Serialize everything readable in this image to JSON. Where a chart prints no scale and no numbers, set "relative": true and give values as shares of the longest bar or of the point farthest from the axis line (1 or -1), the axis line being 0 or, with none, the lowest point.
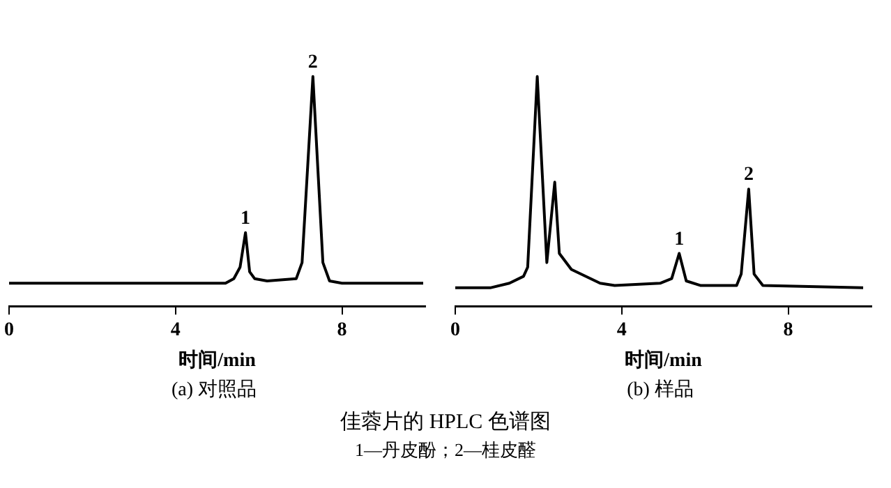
{
  "chart_data": [
    {
      "type": "line",
      "title": "(a) 对照品",
      "xlabel": "时间/min",
      "relative": true,
      "xlim": [
        0,
        10
      ],
      "xticks": [
        0,
        4,
        8
      ],
      "tick_labels": "x",
      "grid": false,
      "legend": false,
      "marker": "none",
      "line_style": "solid",
      "series": [
        {
          "color": "#000000",
          "x": [
            0,
            5.2,
            5.4,
            5.55,
            5.68,
            5.78,
            5.9,
            6.2,
            6.9,
            7.04,
            7.3,
            7.54,
            7.7,
            8,
            9.95
          ],
          "values": [
            0.1,
            0.1,
            0.12,
            0.17,
            0.32,
            0.15,
            0.12,
            0.11,
            0.12,
            0.19,
            1,
            0.19,
            0.11,
            0.1,
            0.1
          ]
        }
      ],
      "annotations": [
        {
          "text": "1",
          "x": 5.68,
          "y": 0.32
        },
        {
          "text": "2",
          "x": 7.3,
          "y": 1
        },
        "佳蓉片的 HPLC 色谱图",
        "1—丹皮酚；2—桂皮醛"
      ]
    },
    {
      "type": "line",
      "title": "(b) 样品",
      "xlabel": "时间/min",
      "relative": true,
      "xlim": [
        0,
        10
      ],
      "xticks": [
        0,
        4,
        8
      ],
      "tick_labels": "x",
      "grid": false,
      "legend": false,
      "marker": "none",
      "line_style": "solid",
      "series": [
        {
          "color": "#000000",
          "x": [
            0,
            0.84,
            1.3,
            1.64,
            1.74,
            1.97,
            2.2,
            2.39,
            2.5,
            2.79,
            3.48,
            3.83,
            4.92,
            5.2,
            5.38,
            5.55,
            5.9,
            6.76,
            6.87,
            7.05,
            7.18,
            7.39,
            9.8
          ],
          "values": [
            0.08,
            0.08,
            0.1,
            0.13,
            0.17,
            1,
            0.19,
            0.54,
            0.23,
            0.16,
            0.1,
            0.09,
            0.1,
            0.12,
            0.23,
            0.11,
            0.09,
            0.09,
            0.14,
            0.51,
            0.14,
            0.09,
            0.08
          ]
        }
      ],
      "annotations": [
        {
          "text": "1",
          "x": 5.38,
          "y": 0.23
        },
        {
          "text": "2",
          "x": 7.05,
          "y": 0.51
        }
      ]
    }
  ]
}
